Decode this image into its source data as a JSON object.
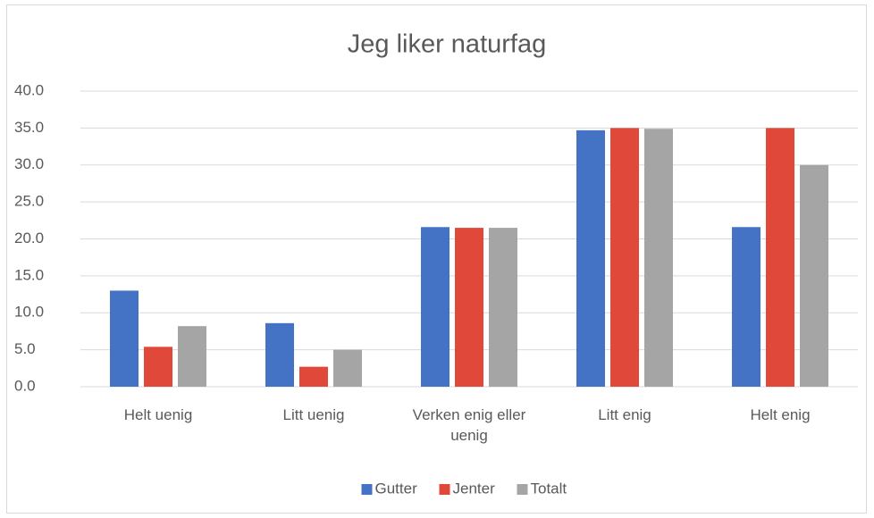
{
  "chart_data": {
    "type": "bar",
    "title": "Jeg liker naturfag",
    "categories": [
      "Helt uenig",
      "Litt uenig",
      "Verken enig eller uenig",
      "Litt enig",
      "Helt enig"
    ],
    "series": [
      {
        "name": "Gutter",
        "color": "#4472c4",
        "values": [
          13.0,
          8.6,
          21.6,
          34.7,
          21.6
        ]
      },
      {
        "name": "Jenter",
        "color": "#e0493a",
        "values": [
          5.4,
          2.7,
          21.5,
          35.0,
          35.0
        ]
      },
      {
        "name": "Totalt",
        "color": "#a5a5a5",
        "values": [
          8.2,
          5.0,
          21.5,
          34.9,
          30.0
        ]
      }
    ],
    "ylim": [
      0,
      40
    ],
    "yticks": [
      {
        "value": 0,
        "label": "0.0"
      },
      {
        "value": 5,
        "label": "5.0"
      },
      {
        "value": 10,
        "label": "10.0"
      },
      {
        "value": 15,
        "label": "15.0"
      },
      {
        "value": 20,
        "label": "20.0"
      },
      {
        "value": 25,
        "label": "25.0"
      },
      {
        "value": 30,
        "label": "30.0"
      },
      {
        "value": 35,
        "label": "35.0"
      },
      {
        "value": 40,
        "label": "40.0"
      }
    ],
    "grid": true,
    "legend": "bottom"
  }
}
